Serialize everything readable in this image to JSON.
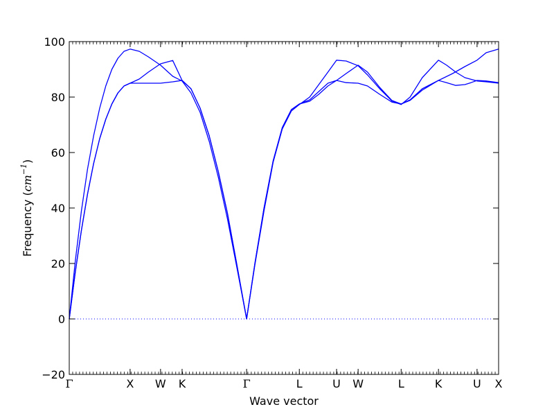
{
  "chart_data": {
    "type": "line",
    "title": "",
    "xlabel": "Wave vector",
    "ylabel": "Frequency",
    "ylabel_unit_base": "cm",
    "ylabel_unit_exp": "−1",
    "ylim": [
      -20,
      100
    ],
    "yticks": [
      -20,
      0,
      20,
      40,
      60,
      80,
      100
    ],
    "xlim": [
      0,
      7.054
    ],
    "high_symmetry_points": [
      {
        "label": "Γ",
        "x": 0.0
      },
      {
        "label": "X",
        "x": 1.0
      },
      {
        "label": "W",
        "x": 1.5
      },
      {
        "label": "K",
        "x": 1.854
      },
      {
        "label": "Γ",
        "x": 2.914
      },
      {
        "label": "L",
        "x": 3.78
      },
      {
        "label": "U",
        "x": 4.392
      },
      {
        "label": "W",
        "x": 4.746
      },
      {
        "label": "L",
        "x": 5.453
      },
      {
        "label": "K",
        "x": 6.066
      },
      {
        "label": "U",
        "x": 6.7
      },
      {
        "label": "X",
        "x": 7.054
      }
    ],
    "zero_line": {
      "y": 0,
      "style": "dotted"
    },
    "grid": false,
    "series": [
      {
        "color": "#0000ff",
        "points": [
          [
            0.0,
            0
          ],
          [
            0.1,
            17
          ],
          [
            0.2,
            32
          ],
          [
            0.3,
            45
          ],
          [
            0.4,
            56
          ],
          [
            0.5,
            65
          ],
          [
            0.6,
            72
          ],
          [
            0.7,
            77.5
          ],
          [
            0.8,
            81.5
          ],
          [
            0.9,
            84
          ],
          [
            1.0,
            85
          ],
          [
            1.25,
            85
          ],
          [
            1.5,
            85
          ],
          [
            1.7,
            85.5
          ],
          [
            1.854,
            86
          ],
          [
            2.0,
            83
          ],
          [
            2.15,
            76
          ],
          [
            2.3,
            66
          ],
          [
            2.45,
            53
          ],
          [
            2.6,
            38
          ],
          [
            2.75,
            20
          ],
          [
            2.914,
            0
          ],
          [
            3.05,
            20
          ],
          [
            3.2,
            40
          ],
          [
            3.35,
            57
          ],
          [
            3.5,
            69
          ],
          [
            3.65,
            75.5
          ],
          [
            3.78,
            77.5
          ],
          [
            3.95,
            79
          ],
          [
            4.1,
            82
          ],
          [
            4.25,
            85
          ],
          [
            4.392,
            86
          ],
          [
            4.55,
            85.2
          ],
          [
            4.746,
            85
          ],
          [
            4.9,
            84
          ],
          [
            5.1,
            81
          ],
          [
            5.3,
            78.2
          ],
          [
            5.453,
            77.5
          ],
          [
            5.6,
            79
          ],
          [
            5.8,
            83
          ],
          [
            6.066,
            86
          ],
          [
            6.2,
            85.2
          ],
          [
            6.35,
            84.2
          ],
          [
            6.5,
            84.5
          ],
          [
            6.6,
            85.2
          ],
          [
            6.7,
            86
          ],
          [
            6.85,
            85.8
          ],
          [
            7.054,
            85.2
          ]
        ]
      },
      {
        "color": "#0000ff",
        "points": [
          [
            0.0,
            0
          ],
          [
            0.1,
            17
          ],
          [
            0.2,
            32
          ],
          [
            0.3,
            45
          ],
          [
            0.4,
            56
          ],
          [
            0.5,
            65
          ],
          [
            0.6,
            72
          ],
          [
            0.7,
            77.5
          ],
          [
            0.8,
            81.5
          ],
          [
            0.9,
            84
          ],
          [
            1.0,
            85
          ],
          [
            1.15,
            86.5
          ],
          [
            1.3,
            89
          ],
          [
            1.5,
            92
          ],
          [
            1.7,
            93.2
          ],
          [
            1.854,
            86
          ],
          [
            2.0,
            83
          ],
          [
            2.15,
            76
          ],
          [
            2.3,
            66
          ],
          [
            2.45,
            53
          ],
          [
            2.6,
            38
          ],
          [
            2.75,
            20
          ],
          [
            2.914,
            0
          ],
          [
            3.05,
            20
          ],
          [
            3.2,
            40
          ],
          [
            3.35,
            57
          ],
          [
            3.5,
            69
          ],
          [
            3.65,
            75.5
          ],
          [
            3.78,
            77.5
          ],
          [
            3.95,
            78.5
          ],
          [
            4.1,
            81
          ],
          [
            4.25,
            84
          ],
          [
            4.392,
            86
          ],
          [
            4.55,
            88.5
          ],
          [
            4.746,
            91.5
          ],
          [
            4.9,
            89
          ],
          [
            5.1,
            83.5
          ],
          [
            5.3,
            78.8
          ],
          [
            5.453,
            77.5
          ],
          [
            5.6,
            78.8
          ],
          [
            5.8,
            82.5
          ],
          [
            6.066,
            86
          ],
          [
            6.3,
            88.5
          ],
          [
            6.5,
            91
          ],
          [
            6.7,
            93.3
          ],
          [
            6.85,
            96
          ],
          [
            7.054,
            97.3
          ]
        ]
      },
      {
        "color": "#0000ff",
        "points": [
          [
            0.0,
            0
          ],
          [
            0.1,
            21
          ],
          [
            0.2,
            39
          ],
          [
            0.3,
            54
          ],
          [
            0.4,
            66
          ],
          [
            0.5,
            76
          ],
          [
            0.6,
            84
          ],
          [
            0.7,
            90
          ],
          [
            0.8,
            94
          ],
          [
            0.9,
            96.5
          ],
          [
            1.0,
            97.3
          ],
          [
            1.15,
            96.5
          ],
          [
            1.3,
            94.5
          ],
          [
            1.5,
            91.5
          ],
          [
            1.7,
            87.5
          ],
          [
            1.854,
            85.8
          ],
          [
            2.0,
            81.5
          ],
          [
            2.15,
            74.5
          ],
          [
            2.3,
            64
          ],
          [
            2.45,
            51
          ],
          [
            2.6,
            36
          ],
          [
            2.75,
            19
          ],
          [
            2.914,
            0
          ],
          [
            3.05,
            19.5
          ],
          [
            3.2,
            39
          ],
          [
            3.35,
            56.5
          ],
          [
            3.5,
            68.5
          ],
          [
            3.65,
            75
          ],
          [
            3.78,
            77.3
          ],
          [
            3.95,
            80
          ],
          [
            4.1,
            84.5
          ],
          [
            4.25,
            89
          ],
          [
            4.392,
            93.3
          ],
          [
            4.55,
            93
          ],
          [
            4.746,
            91.3
          ],
          [
            4.9,
            88
          ],
          [
            5.1,
            83
          ],
          [
            5.3,
            78.6
          ],
          [
            5.453,
            77.3
          ],
          [
            5.6,
            80
          ],
          [
            5.8,
            87
          ],
          [
            6.066,
            93.3
          ],
          [
            6.2,
            91.5
          ],
          [
            6.35,
            89
          ],
          [
            6.5,
            87
          ],
          [
            6.7,
            85.8
          ],
          [
            6.85,
            85.5
          ],
          [
            7.054,
            85
          ]
        ]
      }
    ]
  }
}
